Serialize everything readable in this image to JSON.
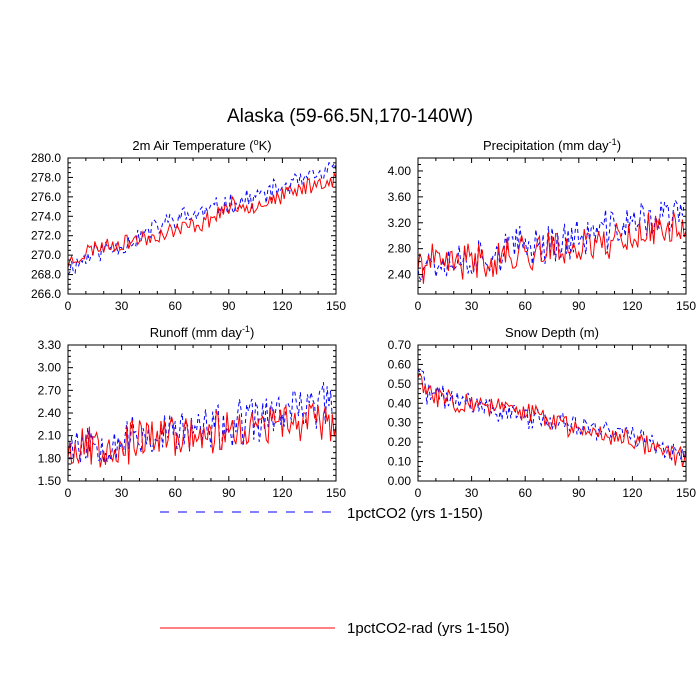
{
  "figure": {
    "title": "Alaska (59-66.5N,170-140W)"
  },
  "legend": {
    "placement": "bottom",
    "entries": [
      {
        "label": "1pctCO2 (yrs 1-150)",
        "color": "#0000ff",
        "style": "dashed"
      },
      {
        "label": "1pctCO2-rad (yrs 1-150)",
        "color": "#ff0000",
        "style": "solid"
      }
    ]
  },
  "chart_data": [
    {
      "type": "line",
      "id": "temperature",
      "title": "2m Air Temperature",
      "title_unit": "(°K)",
      "xlim": [
        0,
        150
      ],
      "ylim": [
        266,
        280
      ],
      "xticks": [
        0,
        30,
        60,
        90,
        120,
        150
      ],
      "yticks": [
        266,
        268,
        270,
        272,
        274,
        276,
        278,
        280
      ],
      "ytick_labels": [
        "266.0",
        "268.0",
        "270.0",
        "272.0",
        "274.0",
        "276.0",
        "278.0",
        "280.0"
      ],
      "series": [
        {
          "name": "1pctCO2 (yrs 1-150)",
          "color": "#0000ff",
          "dashed": true,
          "anchors": [
            [
              0,
              268.6
            ],
            [
              15,
              270.3
            ],
            [
              30,
              271.0
            ],
            [
              45,
              272.4
            ],
            [
              60,
              273.8
            ],
            [
              75,
              274.3
            ],
            [
              90,
              275.3
            ],
            [
              105,
              275.9
            ],
            [
              120,
              277.0
            ],
            [
              135,
              277.8
            ],
            [
              150,
              278.8
            ]
          ],
          "noise": 1.1,
          "seed": 11
        },
        {
          "name": "1pctCO2-rad (yrs 1-150)",
          "color": "#ff0000",
          "dashed": false,
          "anchors": [
            [
              0,
              269.2
            ],
            [
              15,
              270.8
            ],
            [
              30,
              271.3
            ],
            [
              45,
              271.8
            ],
            [
              60,
              272.6
            ],
            [
              75,
              273.3
            ],
            [
              90,
              275.0
            ],
            [
              105,
              275.2
            ],
            [
              120,
              276.0
            ],
            [
              135,
              277.2
            ],
            [
              150,
              277.9
            ]
          ],
          "noise": 0.9,
          "seed": 23
        }
      ]
    },
    {
      "type": "line",
      "id": "precipitation",
      "title": "Precipitation",
      "title_unit": "(mm day-1)",
      "xlim": [
        0,
        150
      ],
      "ylim": [
        2.1,
        4.2
      ],
      "xticks": [
        0,
        30,
        60,
        90,
        120,
        150
      ],
      "yticks": [
        2.4,
        2.8,
        3.2,
        3.6,
        4.0
      ],
      "ytick_labels": [
        "2.40",
        "2.80",
        "3.20",
        "3.60",
        "4.00"
      ],
      "series": [
        {
          "name": "1pctCO2 (yrs 1-150)",
          "color": "#0000ff",
          "dashed": true,
          "anchors": [
            [
              0,
              2.6
            ],
            [
              30,
              2.65
            ],
            [
              60,
              2.85
            ],
            [
              90,
              2.95
            ],
            [
              120,
              3.2
            ],
            [
              150,
              3.35
            ]
          ],
          "noise": 0.32,
          "seed": 37
        },
        {
          "name": "1pctCO2-rad (yrs 1-150)",
          "color": "#ff0000",
          "dashed": false,
          "anchors": [
            [
              0,
              2.55
            ],
            [
              30,
              2.6
            ],
            [
              60,
              2.75
            ],
            [
              90,
              2.85
            ],
            [
              120,
              3.0
            ],
            [
              150,
              3.2
            ]
          ],
          "noise": 0.3,
          "seed": 41
        }
      ]
    },
    {
      "type": "line",
      "id": "runoff",
      "title": "Runoff",
      "title_unit": "(mm day-1)",
      "xlim": [
        0,
        150
      ],
      "ylim": [
        1.5,
        3.3
      ],
      "xticks": [
        0,
        30,
        60,
        90,
        120,
        150
      ],
      "yticks": [
        1.5,
        1.8,
        2.1,
        2.4,
        2.7,
        3.0,
        3.3
      ],
      "ytick_labels": [
        "1.50",
        "1.80",
        "2.10",
        "2.40",
        "2.70",
        "3.00",
        "3.30"
      ],
      "series": [
        {
          "name": "1pctCO2 (yrs 1-150)",
          "color": "#0000ff",
          "dashed": true,
          "anchors": [
            [
              0,
              2.0
            ],
            [
              30,
              2.05
            ],
            [
              60,
              2.15
            ],
            [
              90,
              2.2
            ],
            [
              120,
              2.4
            ],
            [
              150,
              2.55
            ]
          ],
          "noise": 0.32,
          "seed": 53
        },
        {
          "name": "1pctCO2-rad (yrs 1-150)",
          "color": "#ff0000",
          "dashed": false,
          "anchors": [
            [
              0,
              1.95
            ],
            [
              30,
              2.0
            ],
            [
              60,
              2.1
            ],
            [
              90,
              2.15
            ],
            [
              120,
              2.25
            ],
            [
              150,
              2.35
            ]
          ],
          "noise": 0.3,
          "seed": 67
        }
      ]
    },
    {
      "type": "line",
      "id": "snow",
      "title": "Snow Depth",
      "title_unit": "(m)",
      "xlim": [
        0,
        150
      ],
      "ylim": [
        0.0,
        0.7
      ],
      "xticks": [
        0,
        30,
        60,
        90,
        120,
        150
      ],
      "yticks": [
        0.0,
        0.1,
        0.2,
        0.3,
        0.4,
        0.5,
        0.6,
        0.7
      ],
      "ytick_labels": [
        "0.00",
        "0.10",
        "0.20",
        "0.30",
        "0.40",
        "0.50",
        "0.60",
        "0.70"
      ],
      "series": [
        {
          "name": "1pctCO2 (yrs 1-150)",
          "color": "#0000ff",
          "dashed": true,
          "anchors": [
            [
              0,
              0.6
            ],
            [
              5,
              0.45
            ],
            [
              30,
              0.4
            ],
            [
              60,
              0.33
            ],
            [
              90,
              0.28
            ],
            [
              120,
              0.24
            ],
            [
              150,
              0.13
            ]
          ],
          "noise": 0.06,
          "seed": 71
        },
        {
          "name": "1pctCO2-rad (yrs 1-150)",
          "color": "#ff0000",
          "dashed": false,
          "anchors": [
            [
              0,
              0.55
            ],
            [
              5,
              0.45
            ],
            [
              30,
              0.4
            ],
            [
              60,
              0.35
            ],
            [
              90,
              0.27
            ],
            [
              120,
              0.22
            ],
            [
              150,
              0.12
            ]
          ],
          "noise": 0.06,
          "seed": 83
        }
      ]
    }
  ]
}
